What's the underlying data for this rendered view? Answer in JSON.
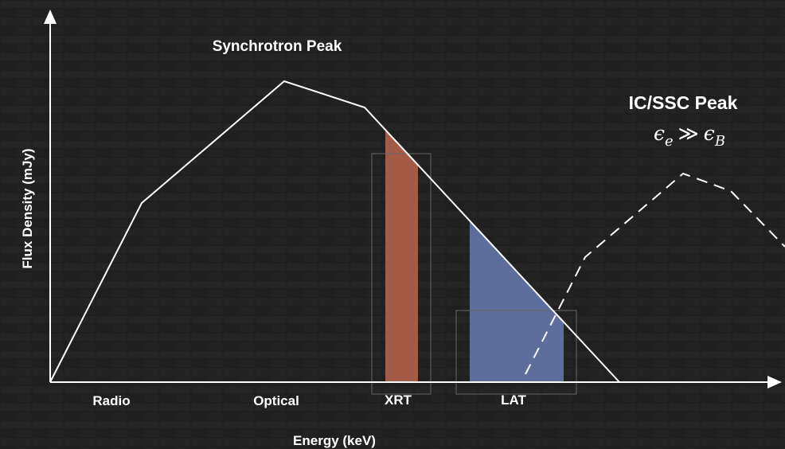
{
  "peaks": {
    "synchrotron": "Synchrotron Peak",
    "ic_ssc": "IC/SSC Peak"
  },
  "condition": {
    "lhs": "ϵ",
    "lhs_sub": "e",
    "relation": "≫",
    "rhs": "ϵ",
    "rhs_sub": "B"
  },
  "axes": {
    "y_label": "Flux Density (mJy)",
    "x_label": "Energy (keV)"
  },
  "bands": [
    "Radio",
    "Optical",
    "XRT",
    "LAT"
  ]
}
